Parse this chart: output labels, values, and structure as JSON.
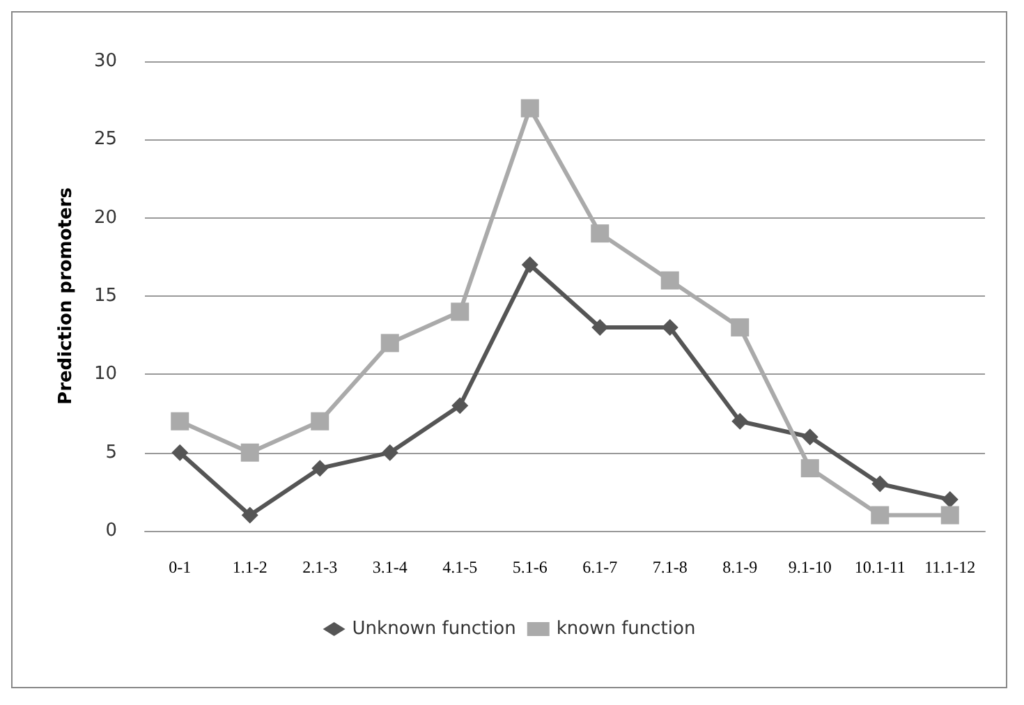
{
  "chart_data": {
    "type": "line",
    "ylabel": "Prediction promoters",
    "categories": [
      "0-1",
      "1.1-2",
      "2.1-3",
      "3.1-4",
      "4.1-5",
      "5.1-6",
      "6.1-7",
      "7.1-8",
      "8.1-9",
      "9.1-10",
      "10.1-11",
      "11.1-12"
    ],
    "series": [
      {
        "name": "Unknown function",
        "color": "#555555",
        "marker": "diamond",
        "values": [
          5,
          1,
          4,
          5,
          8,
          17,
          13,
          13,
          7,
          6,
          3,
          2
        ]
      },
      {
        "name": "known function",
        "color": "#aaaaaa",
        "marker": "square",
        "values": [
          7,
          5,
          7,
          12,
          14,
          27,
          19,
          16,
          13,
          4,
          1,
          1
        ]
      }
    ],
    "ylim": [
      0,
      30
    ],
    "yticks": [
      0,
      5,
      10,
      15,
      20,
      25,
      30
    ],
    "grid": "y",
    "legend": "bottom",
    "line_style": "solid"
  }
}
